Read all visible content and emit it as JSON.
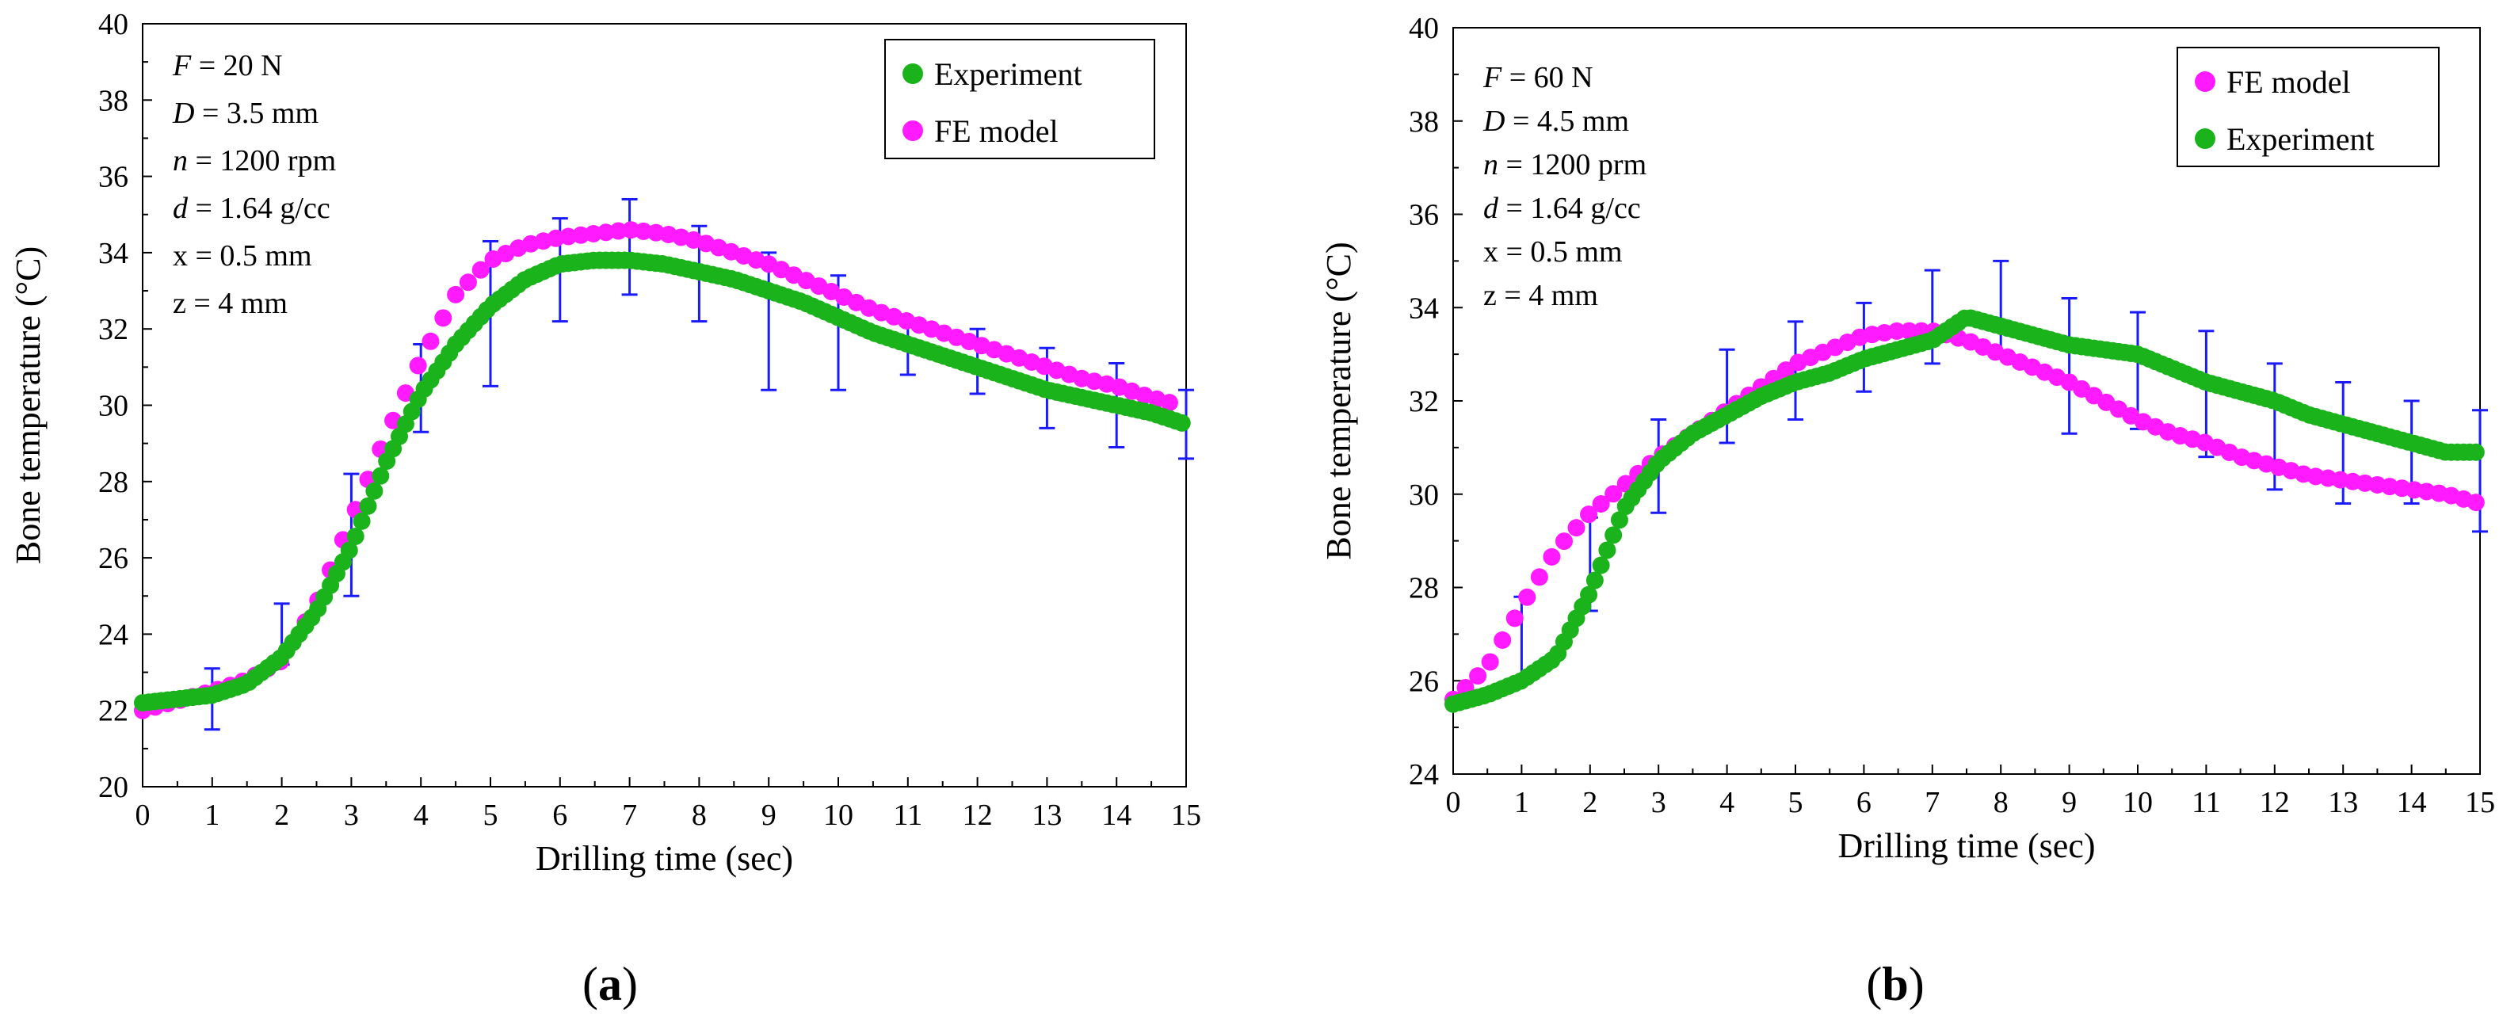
{
  "chart_data": [
    {
      "type": "scatter",
      "panel_label": "a",
      "xlabel": "Drilling time (sec)",
      "ylabel": "Bone temperature (°C)",
      "xlim": [
        0,
        15
      ],
      "ylim": [
        20,
        40
      ],
      "xticks": [
        "0",
        "1",
        "2",
        "3",
        "4",
        "5",
        "6",
        "7",
        "8",
        "9",
        "10",
        "11",
        "12",
        "13",
        "14",
        "15"
      ],
      "yticks": [
        "20",
        "22",
        "24",
        "26",
        "28",
        "30",
        "32",
        "34",
        "36",
        "38",
        "40"
      ],
      "grid": false,
      "legend_position": "top-right",
      "params": [
        {
          "sym": "F",
          "val": " = 20 N"
        },
        {
          "sym": "D",
          "val": " = 3.5 mm"
        },
        {
          "sym": "n",
          "val": " = 1200 rpm"
        },
        {
          "sym": "d",
          "val": " = 1.64 g/cc"
        },
        {
          "sym": "",
          "val": "x = 0.5 mm"
        },
        {
          "sym": "",
          "val": "z = 4 mm"
        }
      ],
      "legend": [
        {
          "name": "Experiment",
          "color": "#1bb31b"
        },
        {
          "name": "FE model",
          "color": "#ff1aff"
        }
      ],
      "series": [
        {
          "name": "FE model",
          "color": "#ff1aff",
          "x": [
            0,
            1,
            1.5,
            2,
            2.5,
            3,
            3.5,
            4,
            4.5,
            5,
            5.5,
            6,
            6.5,
            7,
            7.5,
            8,
            8.5,
            9,
            9.5,
            10,
            10.5,
            11,
            11.5,
            12,
            12.5,
            13,
            13.5,
            14,
            14.5,
            14.9
          ],
          "y": [
            22,
            22.5,
            22.8,
            23.3,
            24.8,
            27.0,
            29.2,
            31.2,
            32.9,
            33.8,
            34.2,
            34.4,
            34.5,
            34.6,
            34.5,
            34.3,
            34.0,
            33.7,
            33.3,
            32.9,
            32.5,
            32.2,
            31.9,
            31.6,
            31.3,
            31.0,
            30.7,
            30.5,
            30.2,
            30.0
          ]
        },
        {
          "name": "Experiment",
          "color": "#1bb31b",
          "x": [
            0,
            0.5,
            1,
            1.5,
            2,
            2.5,
            3,
            3.5,
            4,
            4.5,
            5,
            5.5,
            6,
            6.5,
            7,
            7.5,
            8,
            8.5,
            9,
            9.5,
            10,
            10.5,
            11,
            11.5,
            12,
            12.5,
            13,
            13.5,
            14,
            14.5,
            15
          ],
          "y": [
            22.2,
            22.3,
            22.4,
            22.7,
            23.4,
            24.6,
            26.3,
            28.5,
            30.3,
            31.6,
            32.6,
            33.3,
            33.7,
            33.8,
            33.8,
            33.7,
            33.5,
            33.3,
            33.0,
            32.7,
            32.3,
            31.9,
            31.6,
            31.3,
            31.0,
            30.7,
            30.4,
            30.2,
            30.0,
            29.8,
            29.5
          ],
          "error_bars": [
            {
              "x": 1,
              "low": 21.5,
              "high": 23.1
            },
            {
              "x": 2,
              "low": 23.2,
              "high": 24.8
            },
            {
              "x": 3,
              "low": 25.0,
              "high": 28.2
            },
            {
              "x": 4,
              "low": 29.3,
              "high": 31.6
            },
            {
              "x": 5,
              "low": 30.5,
              "high": 34.3
            },
            {
              "x": 6,
              "low": 32.2,
              "high": 34.9
            },
            {
              "x": 7,
              "low": 32.9,
              "high": 35.4
            },
            {
              "x": 8,
              "low": 32.2,
              "high": 34.7
            },
            {
              "x": 9,
              "low": 30.4,
              "high": 34.0
            },
            {
              "x": 10,
              "low": 30.4,
              "high": 33.4
            },
            {
              "x": 11,
              "low": 30.8,
              "high": 32.2
            },
            {
              "x": 12,
              "low": 30.3,
              "high": 32.0
            },
            {
              "x": 13,
              "low": 29.4,
              "high": 31.5
            },
            {
              "x": 14,
              "low": 28.9,
              "high": 31.1
            },
            {
              "x": 15,
              "low": 28.6,
              "high": 30.4
            }
          ]
        }
      ]
    },
    {
      "type": "scatter",
      "panel_label": "b",
      "xlabel": "Drilling time (sec)",
      "ylabel": "Bone temperature (°C)",
      "xlim": [
        0,
        15
      ],
      "ylim": [
        24,
        40
      ],
      "xticks": [
        "0",
        "1",
        "2",
        "3",
        "4",
        "5",
        "6",
        "7",
        "8",
        "9",
        "10",
        "11",
        "12",
        "13",
        "14",
        "15"
      ],
      "yticks": [
        "24",
        "26",
        "28",
        "30",
        "32",
        "34",
        "36",
        "38",
        "40"
      ],
      "grid": false,
      "legend_position": "top-right",
      "params": [
        {
          "sym": "F",
          "val": " = 60 N"
        },
        {
          "sym": "D",
          "val": " = 4.5 mm"
        },
        {
          "sym": "n",
          "val": " = 1200 prm"
        },
        {
          "sym": "d",
          "val": " = 1.64 g/cc"
        },
        {
          "sym": "",
          "val": "x = 0.5 mm"
        },
        {
          "sym": "",
          "val": "z = 4 mm"
        }
      ],
      "legend": [
        {
          "name": "FE model",
          "color": "#ff1aff"
        },
        {
          "name": "Experiment",
          "color": "#1bb31b"
        }
      ],
      "series": [
        {
          "name": "FE model",
          "color": "#ff1aff",
          "x": [
            0,
            0.5,
            1,
            1.5,
            2,
            2.5,
            3,
            3.5,
            4,
            4.5,
            5,
            5.5,
            6,
            6.5,
            7,
            7.5,
            8,
            8.5,
            9,
            9.5,
            10,
            10.5,
            11,
            11.5,
            12,
            12.5,
            13,
            13.5,
            14,
            14.5,
            15
          ],
          "y": [
            25.6,
            26.3,
            27.6,
            28.8,
            29.6,
            30.2,
            30.8,
            31.3,
            31.8,
            32.3,
            32.8,
            33.1,
            33.4,
            33.5,
            33.5,
            33.3,
            33.0,
            32.7,
            32.4,
            32.0,
            31.6,
            31.3,
            31.1,
            30.8,
            30.6,
            30.4,
            30.3,
            30.2,
            30.1,
            30.0,
            29.8
          ]
        },
        {
          "name": "Experiment",
          "color": "#1bb31b",
          "x": [
            0,
            0.5,
            1,
            1.5,
            2,
            2.5,
            3,
            3.5,
            4,
            4.5,
            5,
            5.5,
            6,
            6.5,
            7,
            7.5,
            8,
            8.5,
            9,
            9.5,
            10,
            10.5,
            11,
            11.5,
            12,
            12.5,
            13,
            13.5,
            14,
            14.5,
            15
          ],
          "y": [
            25.5,
            25.7,
            26.0,
            26.5,
            27.9,
            29.7,
            30.7,
            31.3,
            31.7,
            32.1,
            32.4,
            32.6,
            32.9,
            33.1,
            33.3,
            33.8,
            33.6,
            33.4,
            33.2,
            33.1,
            33.0,
            32.7,
            32.4,
            32.2,
            32.0,
            31.7,
            31.5,
            31.3,
            31.1,
            30.9,
            30.9
          ],
          "error_bars": [
            {
              "x": 1,
              "low": 26.0,
              "high": 27.8
            },
            {
              "x": 2,
              "low": 27.5,
              "high": 29.5
            },
            {
              "x": 3,
              "low": 29.6,
              "high": 31.6
            },
            {
              "x": 4,
              "low": 31.1,
              "high": 33.1
            },
            {
              "x": 5,
              "low": 31.6,
              "high": 33.7
            },
            {
              "x": 6,
              "low": 32.2,
              "high": 34.1
            },
            {
              "x": 7,
              "low": 32.8,
              "high": 34.8
            },
            {
              "x": 8,
              "low": 33.0,
              "high": 35.0
            },
            {
              "x": 9,
              "low": 31.3,
              "high": 34.2
            },
            {
              "x": 10,
              "low": 31.4,
              "high": 33.9
            },
            {
              "x": 11,
              "low": 30.8,
              "high": 33.5
            },
            {
              "x": 12,
              "low": 30.1,
              "high": 32.8
            },
            {
              "x": 13,
              "low": 29.8,
              "high": 32.4
            },
            {
              "x": 14,
              "low": 29.8,
              "high": 32.0
            },
            {
              "x": 15,
              "low": 29.2,
              "high": 31.8
            }
          ]
        }
      ]
    }
  ]
}
